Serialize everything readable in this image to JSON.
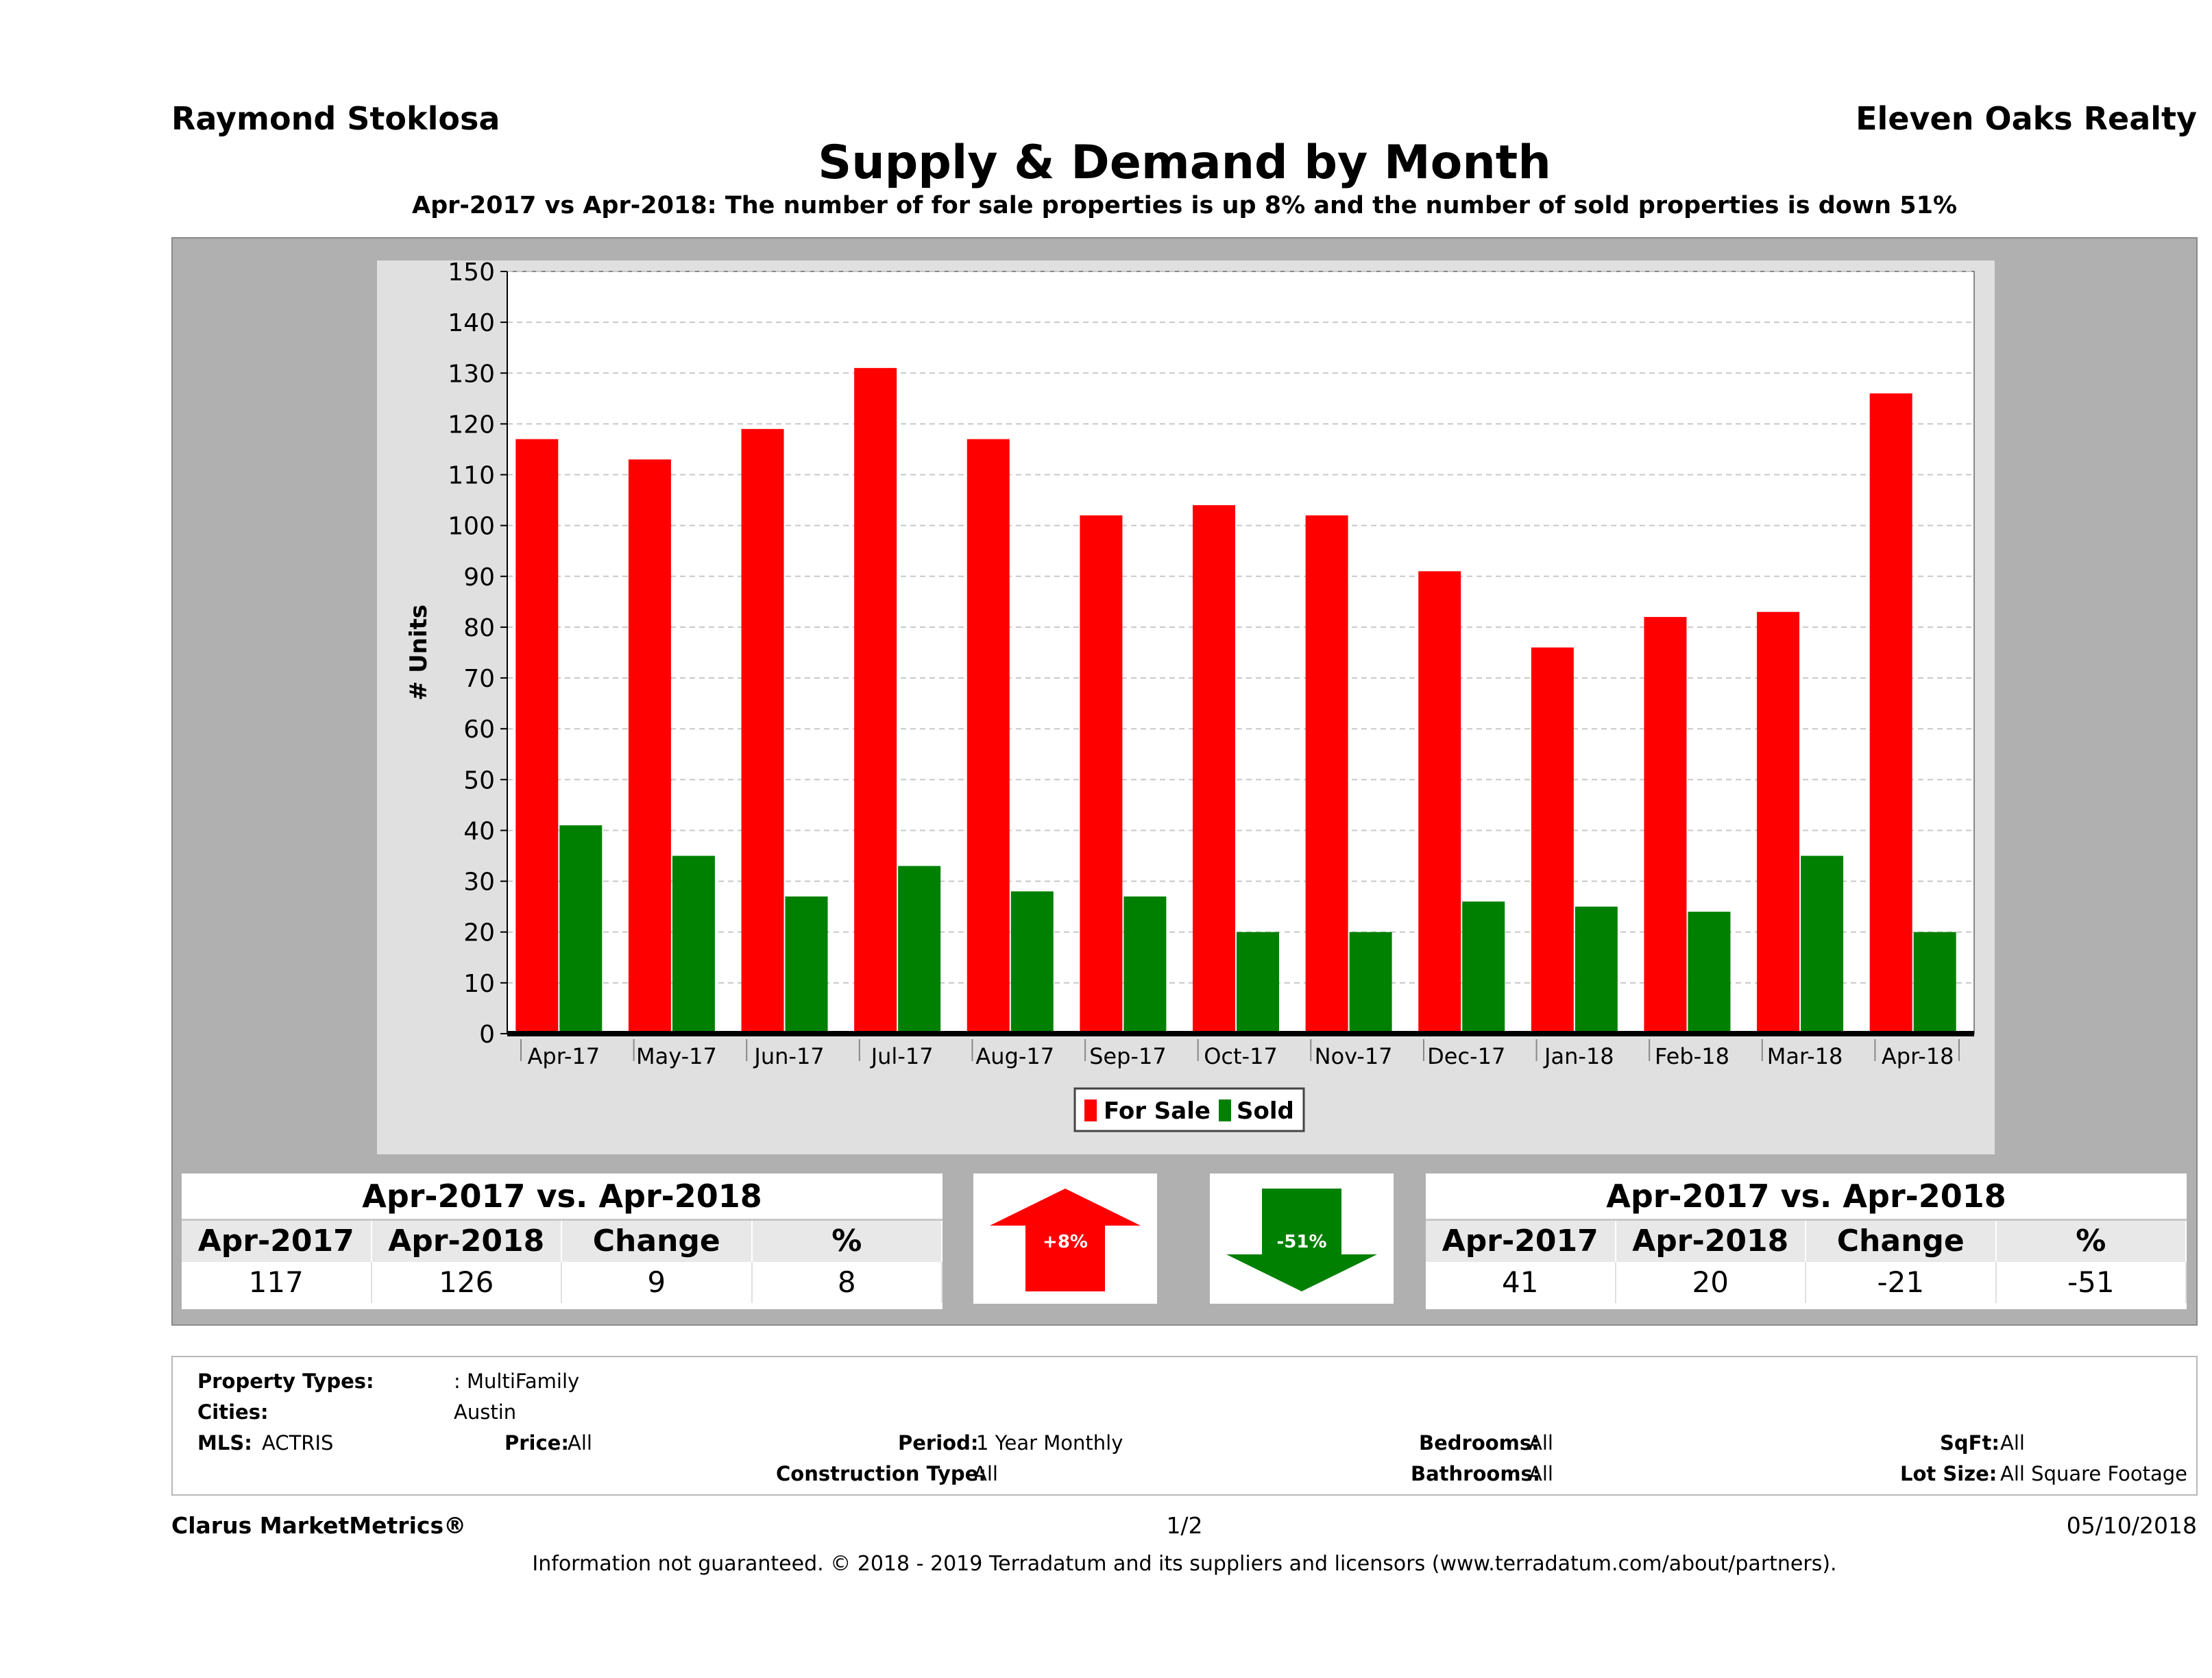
{
  "header": {
    "agent": "Raymond Stoklosa",
    "brokerage": "Eleven Oaks Realty",
    "title": "Supply & Demand by Month",
    "subtitle": "Apr-2017 vs Apr-2018: The number of for sale properties is up 8% and the number of sold properties is down 51%"
  },
  "chart_data": {
    "type": "bar",
    "title": "Supply & Demand by Month",
    "xlabel": "",
    "ylabel": "# Units",
    "ylim": [
      0,
      150
    ],
    "yticks": [
      0,
      10,
      20,
      30,
      40,
      50,
      60,
      70,
      80,
      90,
      100,
      110,
      120,
      130,
      140,
      150
    ],
    "grid": true,
    "legend": "bottom-center",
    "categories": [
      "Apr-17",
      "May-17",
      "Jun-17",
      "Jul-17",
      "Aug-17",
      "Sep-17",
      "Oct-17",
      "Nov-17",
      "Dec-17",
      "Jan-18",
      "Feb-18",
      "Mar-18",
      "Apr-18"
    ],
    "series": [
      {
        "name": "For Sale",
        "color": "#ff0000",
        "values": [
          117,
          113,
          119,
          131,
          117,
          102,
          104,
          102,
          91,
          76,
          82,
          83,
          126
        ]
      },
      {
        "name": "Sold",
        "color": "#008000",
        "values": [
          41,
          35,
          27,
          33,
          28,
          27,
          20,
          20,
          26,
          25,
          24,
          35,
          20
        ]
      }
    ]
  },
  "forsale_stats": {
    "heading": "Apr-2017 vs. Apr-2018",
    "columns": [
      "Apr-2017",
      "Apr-2018",
      "Change",
      "%"
    ],
    "values": [
      "117",
      "126",
      "9",
      "8"
    ],
    "indicator": "+8%",
    "indicator_color": "#ff0000"
  },
  "sold_stats": {
    "heading": "Apr-2017 vs. Apr-2018",
    "columns": [
      "Apr-2017",
      "Apr-2018",
      "Change",
      "%"
    ],
    "values": [
      "41",
      "20",
      "-21",
      "-51"
    ],
    "indicator": "-51%",
    "indicator_color": "#008000"
  },
  "filters": {
    "property_types_label": "Property Types:",
    "property_types_value": ": MultiFamily",
    "cities_label": "Cities:",
    "cities_value": "Austin",
    "mls_label": "MLS:",
    "mls_value": "ACTRIS",
    "price_label": "Price:",
    "price_value": "All",
    "period_label": "Period:",
    "period_value": "1 Year Monthly",
    "construction_label": "Construction Type:",
    "construction_value": "All",
    "bedrooms_label": "Bedrooms:",
    "bedrooms_value": "All",
    "bathrooms_label": "Bathrooms:",
    "bathrooms_value": "All",
    "sqft_label": "SqFt:",
    "sqft_value": "All",
    "lotsize_label": "Lot Size:",
    "lotsize_value": "All Square Footage"
  },
  "footer": {
    "brand": "Clarus MarketMetrics®",
    "page": "1/2",
    "date": "05/10/2018",
    "disclaimer": "Information not guaranteed. © 2018 - 2019 Terradatum and its suppliers and licensors (www.terradatum.com/about/partners)."
  }
}
